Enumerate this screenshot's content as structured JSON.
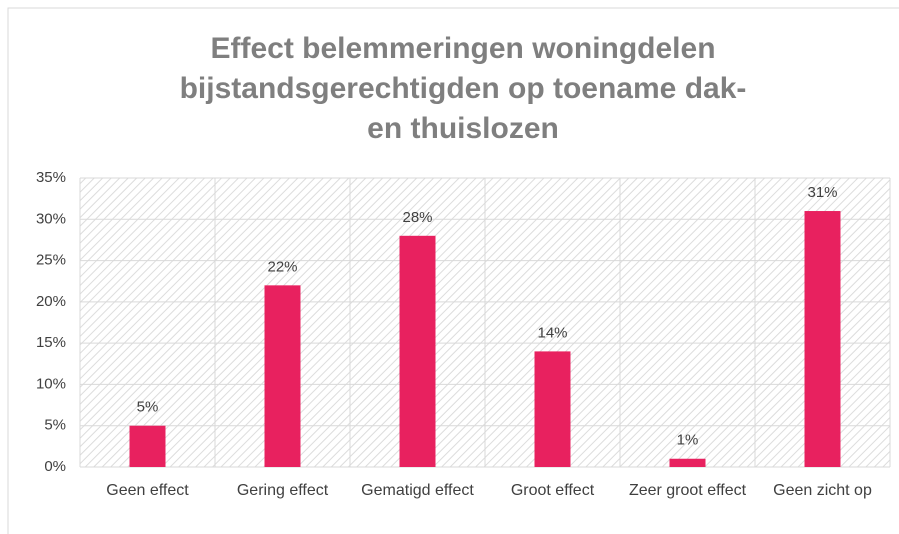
{
  "chart_data": {
    "type": "bar",
    "title": [
      "Effect belemmeringen woningdelen",
      "bijstandsgerechtigden op toename dak-",
      "en thuislozen"
    ],
    "categories": [
      "Geen effect",
      "Gering effect",
      "Gematigd effect",
      "Groot effect",
      "Zeer groot effect",
      "Geen zicht op"
    ],
    "values": [
      5,
      22,
      28,
      14,
      1,
      31
    ],
    "value_labels": [
      "5%",
      "22%",
      "28%",
      "14%",
      "1%",
      "31%"
    ],
    "color": "#e8215f",
    "ylim": [
      0,
      35
    ],
    "yticks": [
      {
        "value": 0,
        "label": "0%"
      },
      {
        "value": 5,
        "label": "5%"
      },
      {
        "value": 10,
        "label": "10%"
      },
      {
        "value": 15,
        "label": "15%"
      },
      {
        "value": 20,
        "label": "20%"
      },
      {
        "value": 25,
        "label": "25%"
      },
      {
        "value": 30,
        "label": "30%"
      },
      {
        "value": 35,
        "label": "35%"
      }
    ],
    "grid": true
  }
}
